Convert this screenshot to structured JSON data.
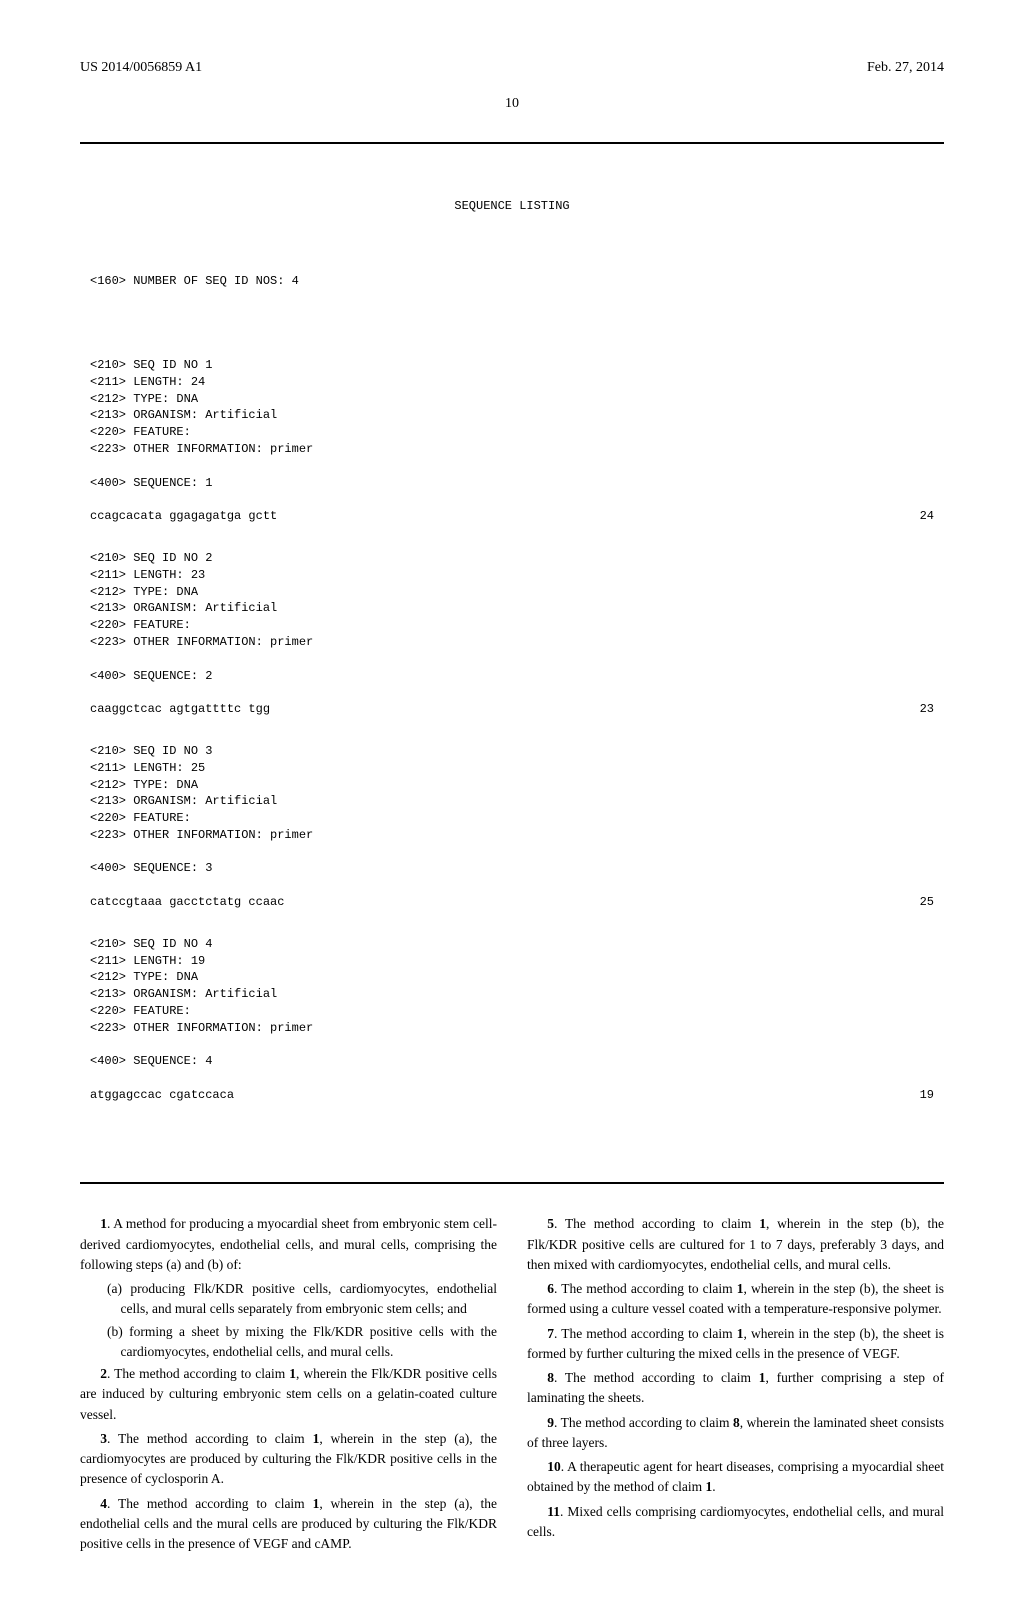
{
  "header": {
    "pub_number": "US 2014/0056859 A1",
    "pub_date": "Feb. 27, 2014"
  },
  "page_number": "10",
  "sequence_listing": {
    "title": "SEQUENCE LISTING",
    "count_line": "<160> NUMBER OF SEQ ID NOS: 4",
    "sequences": [
      {
        "seq_id": "<210> SEQ ID NO 1",
        "length": "<211> LENGTH: 24",
        "type": "<212> TYPE: DNA",
        "organism": "<213> ORGANISM: Artificial",
        "feature": "<220> FEATURE:",
        "other": "<223> OTHER INFORMATION: primer",
        "seq_label": "<400> SEQUENCE: 1",
        "seq_data": "ccagcacata ggagagatga gctt",
        "seq_len": "24"
      },
      {
        "seq_id": "<210> SEQ ID NO 2",
        "length": "<211> LENGTH: 23",
        "type": "<212> TYPE: DNA",
        "organism": "<213> ORGANISM: Artificial",
        "feature": "<220> FEATURE:",
        "other": "<223> OTHER INFORMATION: primer",
        "seq_label": "<400> SEQUENCE: 2",
        "seq_data": "caaggctcac agtgattttc tgg",
        "seq_len": "23"
      },
      {
        "seq_id": "<210> SEQ ID NO 3",
        "length": "<211> LENGTH: 25",
        "type": "<212> TYPE: DNA",
        "organism": "<213> ORGANISM: Artificial",
        "feature": "<220> FEATURE:",
        "other": "<223> OTHER INFORMATION: primer",
        "seq_label": "<400> SEQUENCE: 3",
        "seq_data": "catccgtaaa gacctctatg ccaac",
        "seq_len": "25"
      },
      {
        "seq_id": "<210> SEQ ID NO 4",
        "length": "<211> LENGTH: 19",
        "type": "<212> TYPE: DNA",
        "organism": "<213> ORGANISM: Artificial",
        "feature": "<220> FEATURE:",
        "other": "<223> OTHER INFORMATION: primer",
        "seq_label": "<400> SEQUENCE: 4",
        "seq_data": "atggagccac cgatccaca",
        "seq_len": "19"
      }
    ]
  },
  "claims": [
    {
      "num": "1",
      "text": ". A method for producing a myocardial sheet from embryonic stem cell-derived cardiomyocytes, endothelial cells, and mural cells, comprising the following steps (a) and (b) of:",
      "subs": [
        "(a) producing Flk/KDR positive cells, cardiomyocytes, endothelial cells, and mural cells separately from embryonic stem cells; and",
        "(b) forming a sheet by mixing the Flk/KDR positive cells with the cardiomyocytes, endothelial cells, and mural cells."
      ]
    },
    {
      "num": "2",
      "text": ". The method according to claim ",
      "ref": "1",
      "tail": ", wherein the Flk/KDR positive cells are induced by culturing embryonic stem cells on a gelatin-coated culture vessel."
    },
    {
      "num": "3",
      "text": ". The method according to claim ",
      "ref": "1",
      "tail": ", wherein in the step (a), the cardiomyocytes are produced by culturing the Flk/KDR positive cells in the presence of cyclosporin A."
    },
    {
      "num": "4",
      "text": ". The method according to claim ",
      "ref": "1",
      "tail": ", wherein in the step (a), the endothelial cells and the mural cells are produced by culturing the Flk/KDR positive cells in the presence of VEGF and cAMP."
    },
    {
      "num": "5",
      "text": ". The method according to claim ",
      "ref": "1",
      "tail": ", wherein in the step (b), the Flk/KDR positive cells are cultured for 1 to 7 days, preferably 3 days, and then mixed with cardiomyocytes, endothelial cells, and mural cells."
    },
    {
      "num": "6",
      "text": ". The method according to claim ",
      "ref": "1",
      "tail": ", wherein in the step (b), the sheet is formed using a culture vessel coated with a temperature-responsive polymer."
    },
    {
      "num": "7",
      "text": ". The method according to claim ",
      "ref": "1",
      "tail": ", wherein in the step (b), the sheet is formed by further culturing the mixed cells in the presence of VEGF."
    },
    {
      "num": "8",
      "text": ". The method according to claim ",
      "ref": "1",
      "tail": ", further comprising a step of laminating the sheets."
    },
    {
      "num": "9",
      "text": ". The method according to claim ",
      "ref": "8",
      "tail": ", wherein the laminated sheet consists of three layers."
    },
    {
      "num": "10",
      "text": ". A therapeutic agent for heart diseases, comprising a myocardial sheet obtained by the method of claim ",
      "ref": "1",
      "tail": "."
    },
    {
      "num": "11",
      "text": ". Mixed cells comprising cardiomyocytes, endothelial cells, and mural cells."
    }
  ]
}
